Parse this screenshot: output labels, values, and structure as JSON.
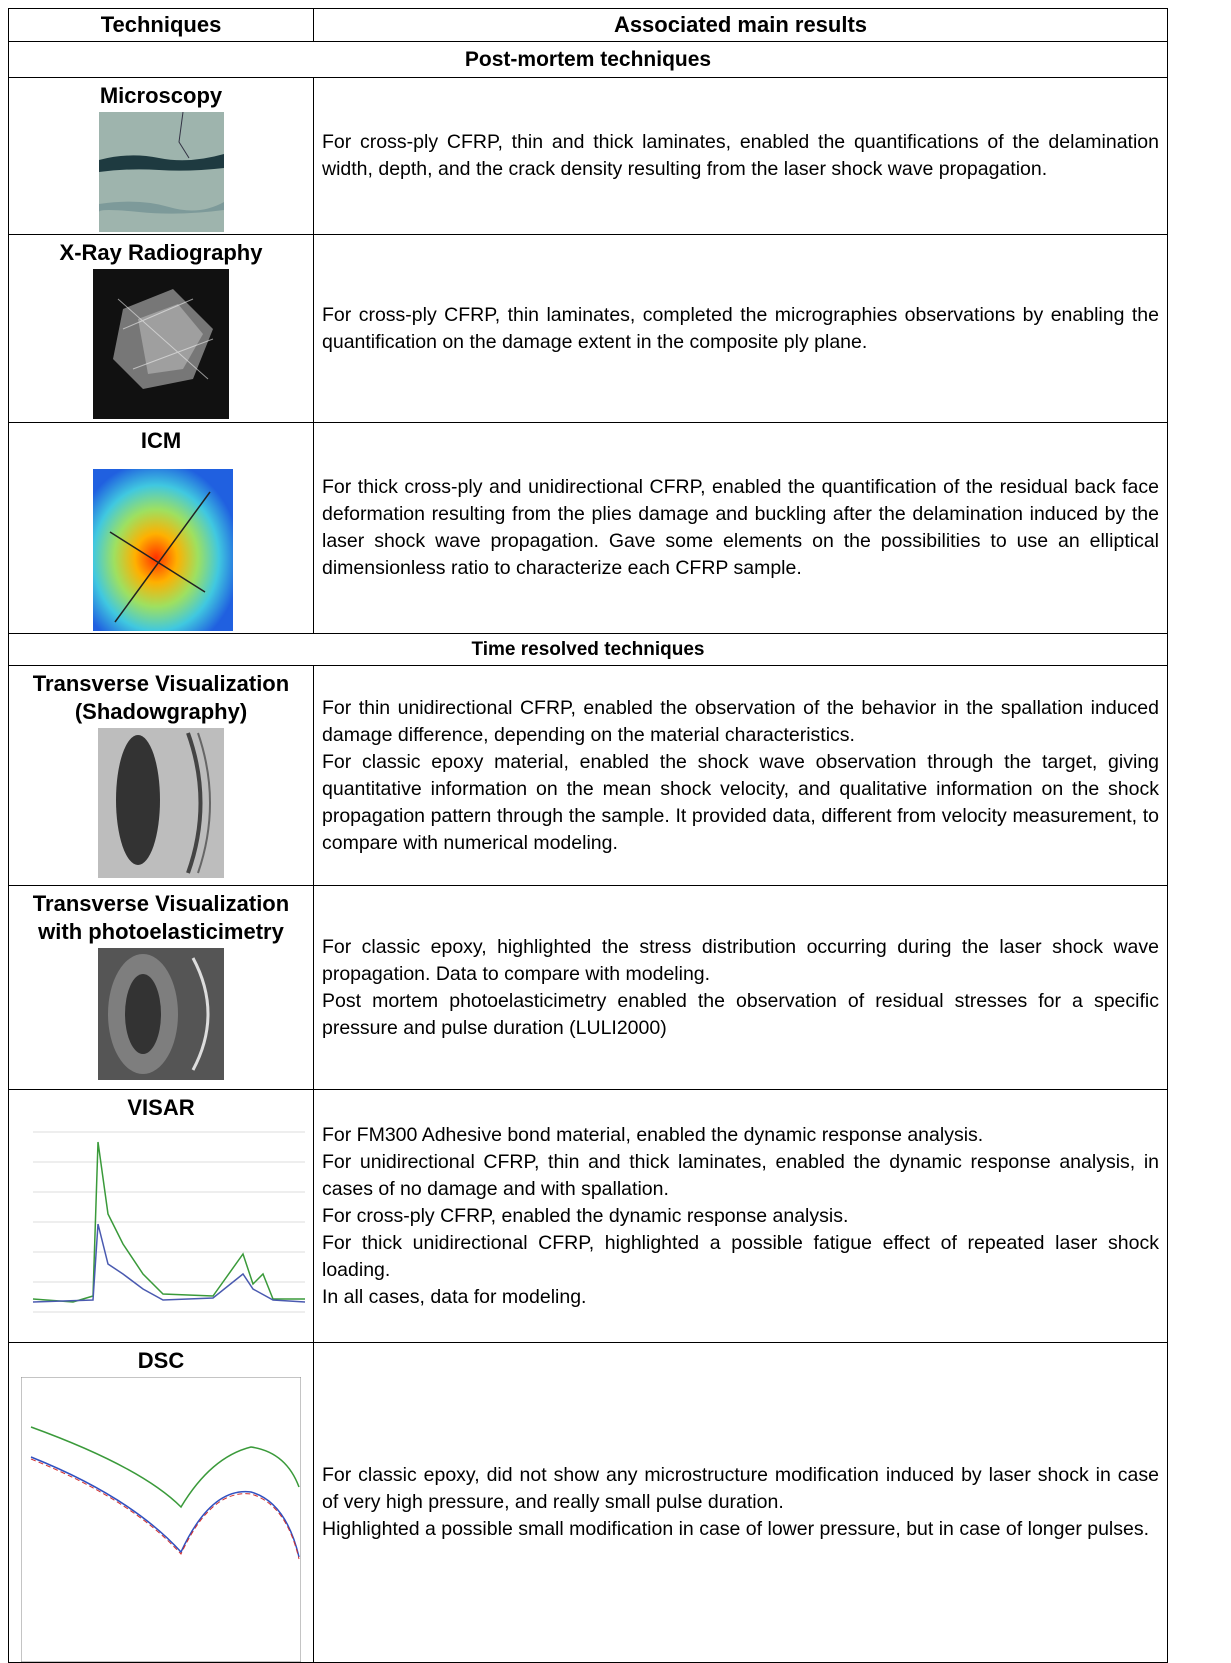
{
  "table": {
    "header": [
      "Techniques",
      "Associated main results"
    ],
    "sections": [
      {
        "title": "Post-mortem techniques",
        "rows": [
          {
            "technique": [
              "Microscopy"
            ],
            "results": [
              "For cross-ply CFRP, thin and thick laminates, enabled the quantifications of the delamination width, depth, and the crack density resulting from the laser shock wave propagation."
            ]
          },
          {
            "technique": [
              "X-Ray Radiography"
            ],
            "results": [
              "For cross-ply CFRP, thin laminates, completed the micrographies observations by enabling the quantification on the damage extent in the composite ply plane."
            ]
          },
          {
            "technique": [
              "ICM"
            ],
            "results": [
              "For thick cross-ply and unidirectional CFRP, enabled the quantification of the residual back face deformation resulting from the plies damage and buckling after the delamination induced by the laser shock wave propagation. Gave some elements on the possibilities to use an elliptical dimensionless ratio to characterize each CFRP sample."
            ]
          }
        ]
      },
      {
        "title": "Time resolved techniques",
        "rows": [
          {
            "technique": [
              "Transverse Visualization",
              "(Shadowgraphy)"
            ],
            "results": [
              "For thin unidirectional CFRP, enabled the observation of the behavior in the spallation induced damage difference, depending on the material characteristics.",
              "For classic epoxy material, enabled the shock wave observation through the target, giving quantitative information on the mean shock velocity, and qualitative information on the shock propagation pattern through the sample. It provided data, different from velocity measurement, to compare with numerical modeling."
            ]
          },
          {
            "technique": [
              "Transverse Visualization",
              "with photoelasticimetry"
            ],
            "results": [
              "For classic epoxy, highlighted the stress distribution occurring during the laser shock wave propagation. Data to compare with modeling.",
              "Post mortem photoelasticimetry enabled the observation of residual stresses for a specific pressure and pulse duration (LULI2000)"
            ]
          },
          {
            "technique": [
              "VISAR"
            ],
            "results": [
              "For FM300 Adhesive bond material, enabled the dynamic response analysis.",
              "For unidirectional CFRP, thin and thick laminates, enabled the dynamic response analysis, in cases of no damage and with spallation.",
              "For cross-ply CFRP, enabled the dynamic response analysis.",
              "For thick unidirectional CFRP, highlighted a possible fatigue effect of repeated laser shock loading.",
              "In all cases, data for modeling."
            ]
          },
          {
            "technique": [
              "DSC"
            ],
            "results": [
              "For classic epoxy, did not show any microstructure modification induced by laser shock in case of very high pressure, and really small pulse duration.",
              "Highlighted a possible small modification in case of lower pressure, but in case of longer pulses."
            ]
          }
        ]
      }
    ]
  }
}
